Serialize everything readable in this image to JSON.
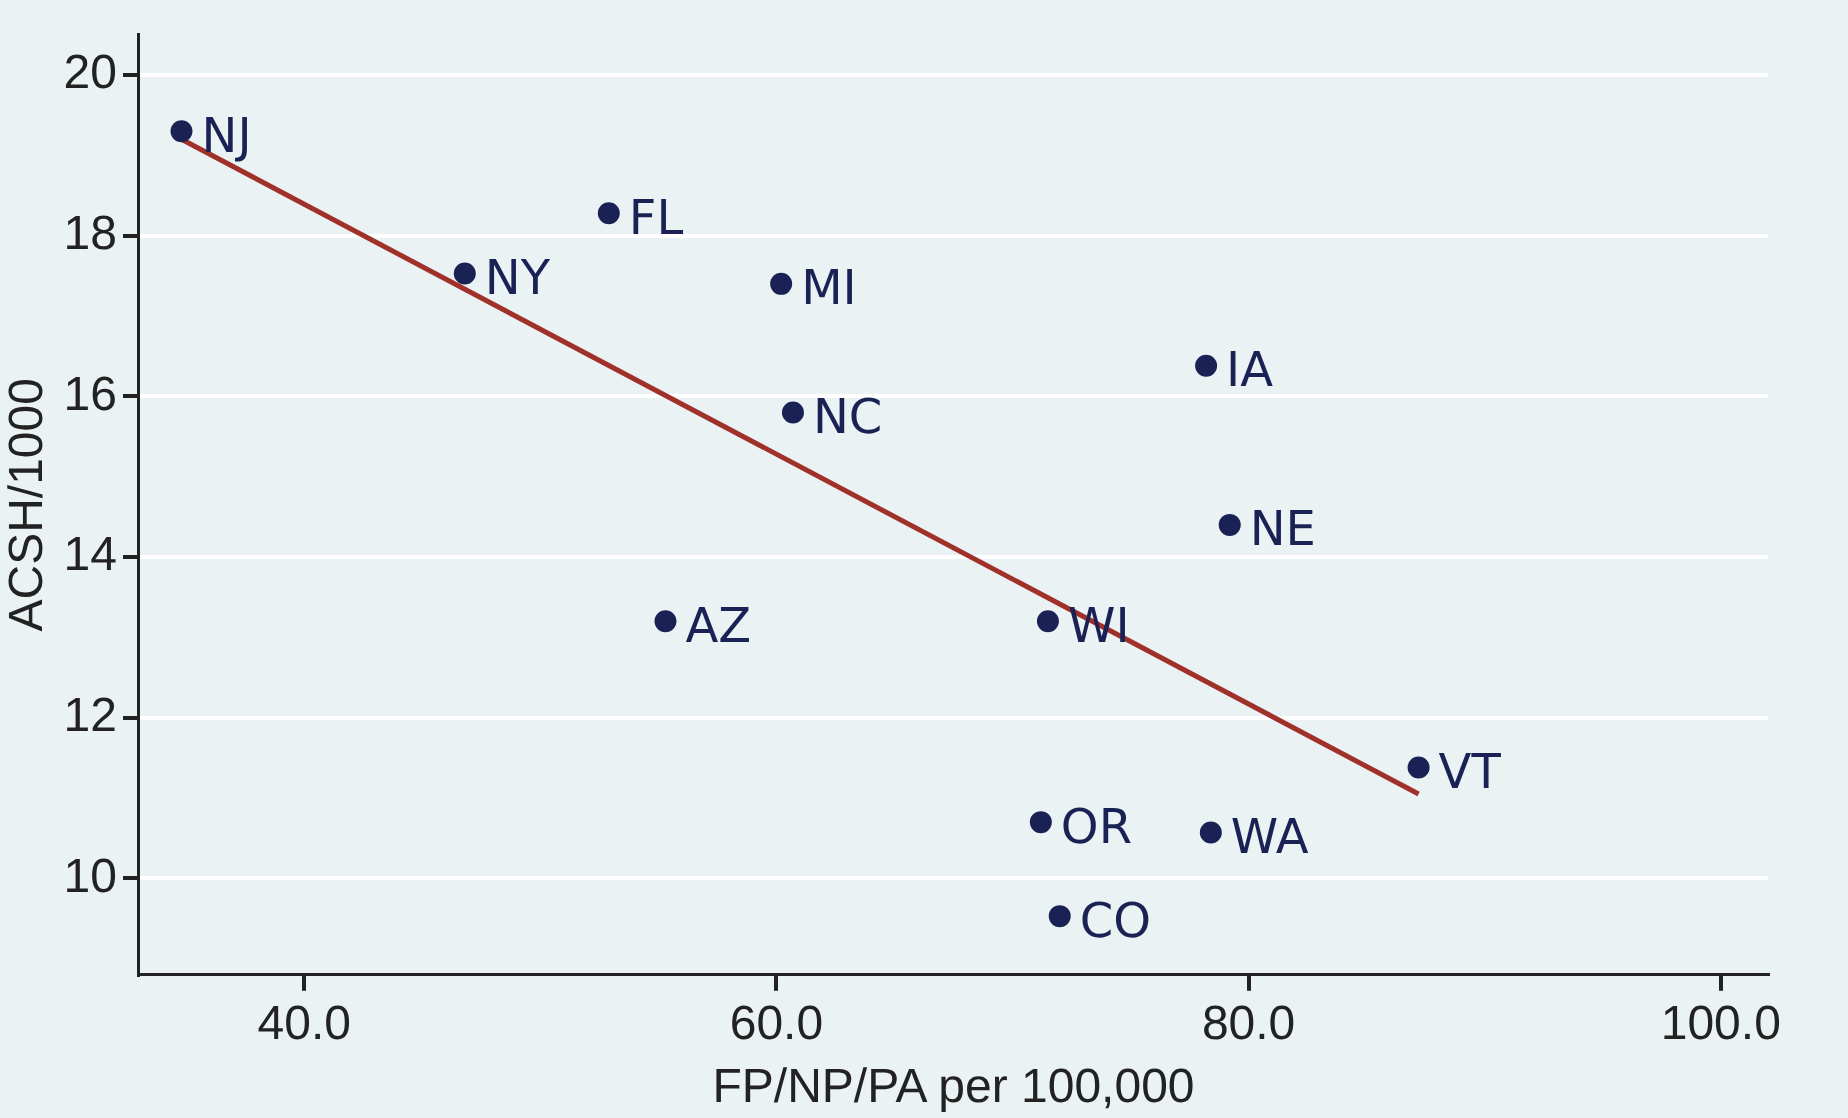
{
  "chart_data": {
    "type": "scatter",
    "xlabel": "FP/NP/PA per 100,000",
    "ylabel": "ACSH/1000",
    "xlim": [
      33,
      102
    ],
    "ylim": [
      8.8,
      20.5
    ],
    "xticks": [
      {
        "value": 40,
        "label": "40.0"
      },
      {
        "value": 60,
        "label": "60.0"
      },
      {
        "value": 80,
        "label": "80.0"
      },
      {
        "value": 100,
        "label": "100.0"
      }
    ],
    "yticks": [
      10,
      12,
      14,
      16,
      18,
      20
    ],
    "grid": "y",
    "legend": false,
    "series": [
      {
        "marker": "circle",
        "color": "#1a2255",
        "x": [
          34.8,
          52.9,
          46.8,
          60.2,
          78.2,
          60.7,
          79.2,
          55.3,
          71.5,
          87.2,
          71.2,
          78.4,
          72.0
        ],
        "values": [
          19.3,
          18.28,
          17.53,
          17.4,
          16.38,
          15.8,
          14.4,
          13.2,
          13.2,
          11.38,
          10.7,
          10.57,
          9.53
        ]
      },
      {
        "type": "line",
        "marker": "none",
        "color": "#a0302a",
        "x": [
          34.8,
          87.2
        ],
        "values": [
          19.2,
          11.05
        ]
      }
    ],
    "annotations": [
      {
        "text": "NJ",
        "x": 34.8,
        "y": 19.3
      },
      {
        "text": "FL",
        "x": 52.9,
        "y": 18.28
      },
      {
        "text": "NY",
        "x": 46.8,
        "y": 17.53
      },
      {
        "text": "MI",
        "x": 60.2,
        "y": 17.4
      },
      {
        "text": "IA",
        "x": 78.2,
        "y": 16.38
      },
      {
        "text": "NC",
        "x": 60.7,
        "y": 15.8
      },
      {
        "text": "NE",
        "x": 79.2,
        "y": 14.4
      },
      {
        "text": "AZ",
        "x": 55.3,
        "y": 13.2
      },
      {
        "text": "WI",
        "x": 71.5,
        "y": 13.2
      },
      {
        "text": "VT",
        "x": 87.2,
        "y": 11.38
      },
      {
        "text": "OR",
        "x": 71.2,
        "y": 10.7
      },
      {
        "text": "WA",
        "x": 78.4,
        "y": 10.57
      },
      {
        "text": "CO",
        "x": 72.0,
        "y": 9.53
      }
    ]
  }
}
